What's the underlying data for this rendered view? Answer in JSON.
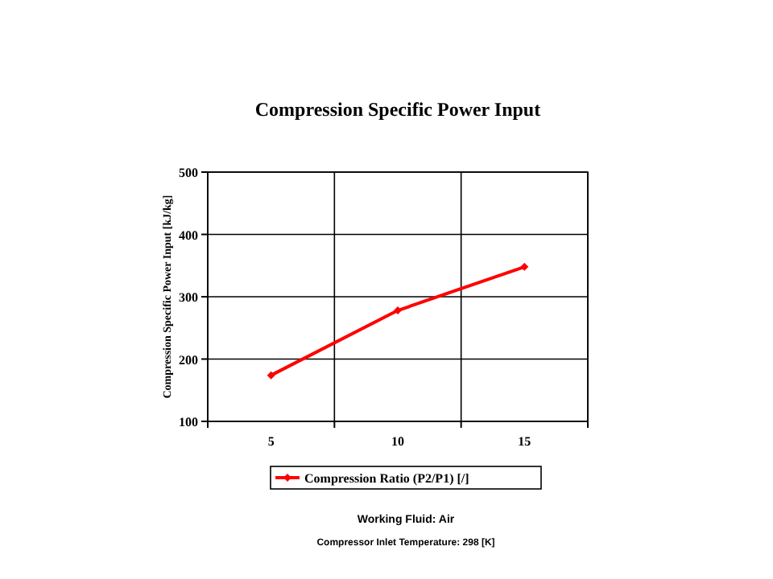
{
  "chart_data": {
    "type": "line",
    "title": "Compression Specific Power Input",
    "ylabel": "Compression Specific Power Input [kJ/kg]",
    "categories": [
      "5",
      "10",
      "15"
    ],
    "series": [
      {
        "name": "Compression Ratio (P2/P1) [/]",
        "color": "#ff0000",
        "values": [
          174,
          278,
          348
        ]
      }
    ],
    "ylim": [
      100,
      500
    ],
    "yticks": [
      100,
      200,
      300,
      400,
      500
    ],
    "grid": true,
    "legend": "bottom",
    "marker": "diamond",
    "line_style": "solid",
    "annotations": [
      "Working Fluid:  Air",
      "Compressor Inlet Temperature:  298 [K]"
    ]
  }
}
